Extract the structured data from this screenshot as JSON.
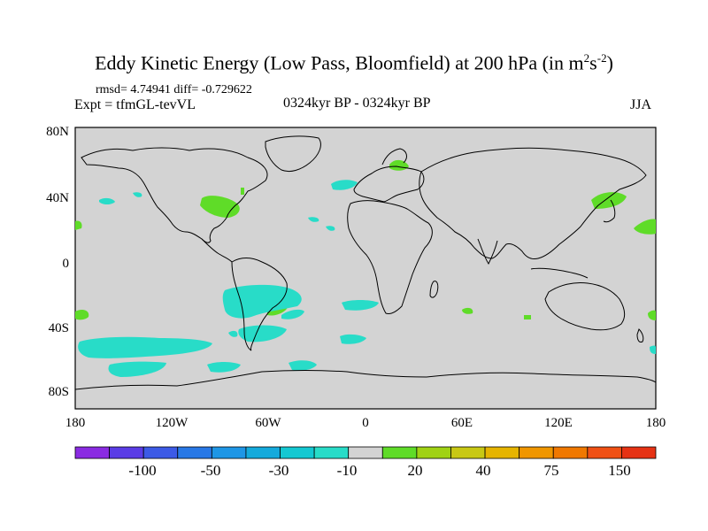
{
  "title": {
    "main": "Eddy Kinetic Energy (Low Pass, Bloomfield) at 200 hPa (in m",
    "sup1": "2",
    "mid": "s",
    "sup2": "-2",
    "end": ")"
  },
  "stats": "rmsd= 4.74941 diff= -0.729622",
  "experiment": "Expt = tfmGL-tevVL",
  "period": "0324kyr BP - 0324kyr BP",
  "season": "JJA",
  "colors": {
    "ocean_land_fill": "#d3d3d3",
    "coastline": "#000000",
    "positive": "#5fdc28",
    "negative": "#28dcc8"
  },
  "y_ticks": [
    "80N",
    "40N",
    "0",
    "40S",
    "80S"
  ],
  "x_ticks": [
    "180",
    "120W",
    "60W",
    "0",
    "60E",
    "120E",
    "180"
  ],
  "colorbar": {
    "colors": [
      "#8a2be2",
      "#5a3ce6",
      "#3c5ae6",
      "#2878e6",
      "#1e96e6",
      "#14aadc",
      "#14c8d2",
      "#28dcc8",
      "#d3d3d3",
      "#5fdc28",
      "#a0d214",
      "#c8c814",
      "#e6b400",
      "#f09600",
      "#f07800",
      "#f05014",
      "#e63214"
    ],
    "labels": [
      "-100",
      "-50",
      "-30",
      "-10",
      "20",
      "40",
      "75",
      "150"
    ]
  }
}
